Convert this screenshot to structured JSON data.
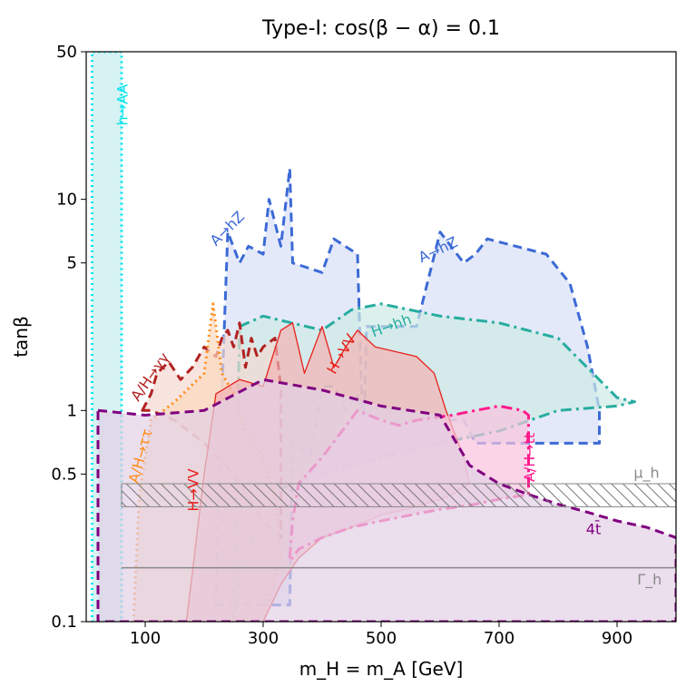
{
  "chart_data": {
    "type": "area",
    "title": "Type-I: cos(β − α) = 0.1",
    "xlabel": "m_H = m_A [GeV]",
    "ylabel": "tanβ",
    "xlim": [
      0,
      1000
    ],
    "ylim": [
      0.1,
      50
    ],
    "yscale": "log",
    "x_ticks": [
      100,
      300,
      500,
      700,
      900
    ],
    "x_tick_labels": [
      "100",
      "300",
      "500",
      "700",
      "900"
    ],
    "y_ticks": [
      0.1,
      0.5,
      1,
      5,
      10,
      50
    ],
    "y_tick_labels": [
      "0.1",
      "0.5",
      "1",
      "5",
      "10",
      "50"
    ],
    "grid": false,
    "legend": "none (labels placed in plot)",
    "regions": [
      {
        "label": "h→AA",
        "color": "#00e5ee",
        "style": "dotted",
        "fill": "#c6ecec",
        "x": [
          10,
          60,
          60,
          60,
          10
        ],
        "y": [
          0.1,
          0.1,
          10,
          50,
          50
        ]
      },
      {
        "label": "A→hZ",
        "color": "#3c6ad6",
        "style": "dashed",
        "fill": "#d9e0f7",
        "x": [
          220,
          225,
          240,
          260,
          275,
          300,
          310,
          330,
          345,
          350,
          400,
          420,
          460,
          470,
          475,
          560,
          600,
          640,
          660,
          680,
          780,
          820,
          850,
          870,
          870,
          660,
          640,
          560,
          550,
          480,
          470,
          460,
          440,
          420,
          400,
          380,
          350,
          345,
          330,
          225
        ],
        "y": [
          0.12,
          0.5,
          7,
          5,
          6,
          5.5,
          10,
          6,
          14,
          5,
          4.5,
          6.5,
          5.5,
          0.6,
          2.5,
          2.5,
          7,
          5,
          5.5,
          6.5,
          5.5,
          4,
          2,
          1,
          0.7,
          0.7,
          0.9,
          0.9,
          0.7,
          0.7,
          0.6,
          1.2,
          1.0,
          1.3,
          1.3,
          0.6,
          0.7,
          0.12,
          0.12,
          0.12
        ]
      },
      {
        "label": "H→hh",
        "color": "#27ada0",
        "style": "dashdot",
        "fill": "#cdeae6",
        "x": [
          250,
          260,
          300,
          400,
          450,
          500,
          600,
          700,
          800,
          900,
          930,
          900,
          800,
          700,
          600,
          500,
          400,
          300,
          260
        ],
        "y": [
          0.1,
          2.5,
          2.8,
          2.4,
          3.0,
          3.2,
          2.8,
          2.6,
          2.2,
          1.15,
          1.1,
          1.05,
          1.0,
          0.8,
          0.7,
          0.6,
          0.5,
          0.4,
          0.15
        ]
      },
      {
        "label": "A/H→γγ",
        "color": "#b22222",
        "style": "dashed",
        "fill": "#f3d9d0",
        "x": [
          95,
          110,
          120,
          140,
          160,
          180,
          200,
          220,
          230,
          240,
          250,
          260,
          270,
          280,
          290,
          300,
          320,
          330,
          330,
          300,
          250,
          200,
          150,
          110,
          95
        ],
        "y": [
          1.0,
          1.2,
          1.5,
          1.7,
          1.4,
          1.6,
          2.0,
          1.8,
          2.2,
          2.4,
          2.0,
          2.6,
          1.6,
          2.2,
          1.8,
          2.0,
          2.2,
          1.3,
          0.25,
          0.3,
          0.5,
          0.7,
          0.9,
          1.0,
          1.0
        ]
      },
      {
        "label": "A/H→ττ",
        "color": "#ff8c1a",
        "style": "dotted",
        "fill": "#fbd9bd",
        "x": [
          80,
          90,
          110,
          150,
          200,
          215,
          220,
          230,
          250,
          270,
          300,
          320,
          330,
          300,
          200,
          100,
          80
        ],
        "y": [
          0.1,
          0.4,
          0.9,
          1.1,
          1.5,
          3.2,
          2.5,
          1.5,
          1.2,
          0.8,
          0.6,
          0.4,
          0.2,
          0.1,
          0.1,
          0.1,
          0.1
        ]
      },
      {
        "label": "H→VV",
        "color": "#e8201a",
        "style": "solid",
        "fill": "#f4b3b3",
        "x": [
          170,
          200,
          220,
          260,
          300,
          330,
          350,
          370,
          400,
          420,
          440,
          460,
          490,
          560,
          590,
          610,
          640,
          650,
          620,
          600,
          560,
          500,
          450,
          400,
          360,
          330,
          300,
          260,
          220,
          200,
          170
        ],
        "y": [
          0.1,
          0.5,
          1.2,
          1.4,
          1.3,
          2.4,
          2.6,
          1.5,
          2.5,
          1.6,
          2.0,
          2.4,
          2.0,
          1.8,
          1.5,
          1.0,
          0.6,
          0.45,
          0.4,
          0.38,
          0.35,
          0.32,
          0.28,
          0.25,
          0.2,
          0.15,
          0.1,
          0.1,
          0.1,
          0.1,
          0.1
        ]
      },
      {
        "label": "A/H→tt",
        "color": "#ff1a8c",
        "style": "dashdot",
        "fill": "#f9c3dd",
        "x": [
          345,
          350,
          360,
          400,
          460,
          500,
          530,
          560,
          620,
          660,
          700,
          740,
          750,
          750,
          700,
          660,
          600,
          550,
          500,
          450,
          400,
          360,
          350,
          345
        ],
        "y": [
          0.2,
          0.3,
          0.45,
          0.6,
          1.0,
          0.9,
          0.85,
          0.9,
          0.95,
          1.0,
          1.05,
          1.0,
          0.95,
          0.4,
          0.38,
          0.36,
          0.34,
          0.32,
          0.3,
          0.28,
          0.25,
          0.22,
          0.2,
          0.2
        ]
      },
      {
        "label": "4t",
        "color": "#800080",
        "style": "dashed",
        "fill": "#e2d0e6",
        "x": [
          20,
          100,
          200,
          300,
          400,
          500,
          600,
          650,
          700,
          750,
          800,
          850,
          900,
          950,
          1000,
          1000,
          20
        ],
        "y": [
          1.0,
          0.95,
          1.0,
          1.4,
          1.25,
          1.05,
          0.95,
          0.55,
          0.45,
          0.4,
          0.36,
          0.33,
          0.3,
          0.28,
          0.25,
          0.1,
          0.1
        ]
      }
    ],
    "constraints": [
      {
        "label": "μ_h",
        "y_low": 0.35,
        "y_high": 0.45,
        "x_from": 60,
        "x_to": 1000,
        "style": "hatched"
      },
      {
        "label": "Γ_h",
        "y": 0.18,
        "x_from": 60,
        "x_to": 1000,
        "style": "solid gray"
      }
    ],
    "labels": [
      {
        "text": "h→AA",
        "x": 70,
        "y": 28,
        "color": "#00e5ee",
        "rotation": -90
      },
      {
        "text": "A→hZ",
        "x": 245,
        "y": 7,
        "color": "#3c6ad6",
        "rotation": -45
      },
      {
        "text": "A→hZ",
        "x": 600,
        "y": 5.5,
        "color": "#3c6ad6",
        "rotation": -25
      },
      {
        "text": "H→hh",
        "x": 520,
        "y": 2.4,
        "color": "#27ada0",
        "rotation": -20
      },
      {
        "text": "H→VV",
        "x": 440,
        "y": 1.8,
        "color": "#e8201a",
        "rotation": -60
      },
      {
        "text": "H→VV",
        "x": 190,
        "y": 0.42,
        "color": "#e8201a",
        "rotation": -90
      },
      {
        "text": "A/H→γγ",
        "x": 115,
        "y": 1.4,
        "color": "#b22222",
        "rotation": -55
      },
      {
        "text": "A/H→ττ",
        "x": 100,
        "y": 0.6,
        "color": "#ff8c1a",
        "rotation": -75
      },
      {
        "text": "A/H→tt",
        "x": 760,
        "y": 0.6,
        "color": "#ff1a8c",
        "rotation": -90
      },
      {
        "text": "μ_h",
        "x": 950,
        "y": 0.48,
        "color": "#8a8a8a",
        "rotation": 0
      },
      {
        "text": "Γ_h",
        "x": 955,
        "y": 0.15,
        "color": "#8a8a8a",
        "rotation": 0
      },
      {
        "text": "4t̄",
        "x": 860,
        "y": 0.26,
        "color": "#800080",
        "rotation": 0
      }
    ]
  }
}
